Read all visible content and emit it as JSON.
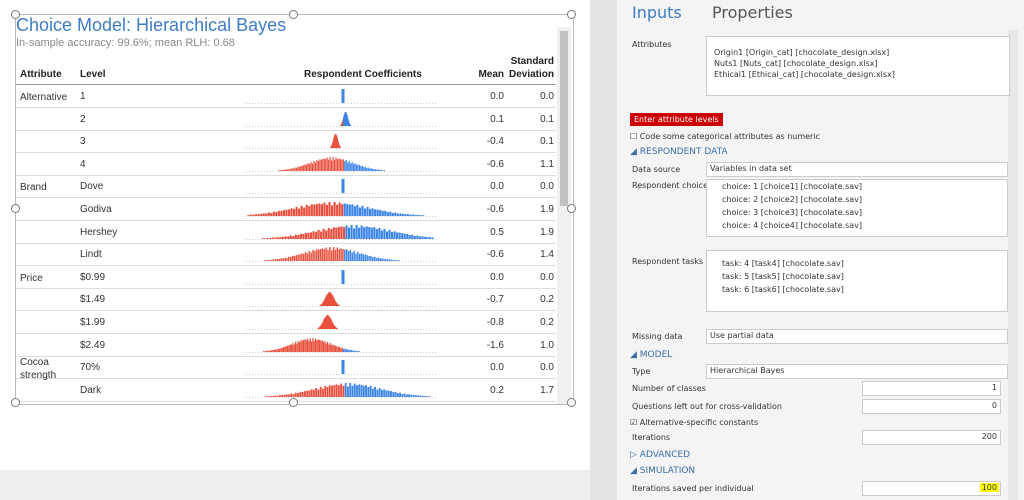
{
  "output": {
    "title": "Choice Model: Hierarchical Bayes",
    "subtitle": "In-sample accuracy: 99.6%; mean RLH: 0.68",
    "columns": {
      "attribute": "Attribute",
      "level": "Level",
      "coefficients": "Respondent Coefficients",
      "mean": "Mean",
      "sd": "Standard Deviation"
    },
    "rows": [
      {
        "attribute": "Alternative",
        "level": "1",
        "mean": "0.0",
        "sd": "0.0"
      },
      {
        "level": "2",
        "mean": "0.1",
        "sd": "0.1"
      },
      {
        "level": "3",
        "mean": "-0.4",
        "sd": "0.1"
      },
      {
        "level": "4",
        "mean": "-0.6",
        "sd": "1.1"
      },
      {
        "attribute": "Brand",
        "level": "Dove",
        "mean": "0.0",
        "sd": "0.0"
      },
      {
        "level": "Godiva",
        "mean": "-0.6",
        "sd": "1.9"
      },
      {
        "level": "Hershey",
        "mean": "0.5",
        "sd": "1.9"
      },
      {
        "level": "Lindt",
        "mean": "-0.6",
        "sd": "1.4"
      },
      {
        "attribute": "Price",
        "level": "$0.99",
        "mean": "0.0",
        "sd": "0.0"
      },
      {
        "level": "$1.49",
        "mean": "-0.7",
        "sd": "0.2"
      },
      {
        "level": "$1.99",
        "mean": "-0.8",
        "sd": "0.2"
      },
      {
        "level": "$2.49",
        "mean": "-1.6",
        "sd": "1.0"
      },
      {
        "attribute": "Cocoa strength",
        "level": "70%",
        "mean": "0.0",
        "sd": "0.0"
      },
      {
        "level": "Dark",
        "mean": "0.2",
        "sd": "1.7"
      }
    ]
  },
  "panel": {
    "tabs": [
      "Inputs",
      "Properties"
    ],
    "attributes": {
      "label": "Attributes",
      "items": [
        "Origin1 [Origin_cat] [chocolate_design.xlsx]",
        "Nuts1 [Nuts_cat] [chocolate_design.xlsx]",
        "Ethical1 [Ethical_cat] [chocolate_design.xlsx]"
      ]
    },
    "button": "Enter attribute levels",
    "numeric_checkbox": "Code some categorical attributes as numeric",
    "respondent_section": "RESPONDENT DATA",
    "data_source": {
      "label": "Data source",
      "value": "Variables in data set"
    },
    "choices": {
      "label": "Respondent choices",
      "items": [
        "choice: 1 [choice1] [chocolate.sav]",
        "choice: 2 [choice2] [chocolate.sav]",
        "choice: 3 [choice3] [chocolate.sav]",
        "choice: 4 [choice4] [chocolate.sav]"
      ]
    },
    "tasks": {
      "label": "Respondent tasks",
      "items": [
        "task: 4 [task4] [chocolate.sav]",
        "task: 5 [task5] [chocolate.sav]",
        "task: 6 [task6] [chocolate.sav]"
      ]
    },
    "missing": {
      "label": "Missing data",
      "value": "Use partial data"
    },
    "model_section": "MODEL",
    "type": {
      "label": "Type",
      "value": "Hierarchical Bayes"
    },
    "classes": {
      "label": "Number of classes",
      "value": "1"
    },
    "left_out": {
      "label": "Questions left out for cross-validation",
      "value": "0"
    },
    "asc": "Alternative-specific constants",
    "iterations": {
      "label": "Iterations",
      "value": "200"
    },
    "advanced_section": "ADVANCED",
    "simulation_section": "SIMULATION",
    "saved": {
      "label": "Iterations saved per individual",
      "value": "100"
    }
  }
}
